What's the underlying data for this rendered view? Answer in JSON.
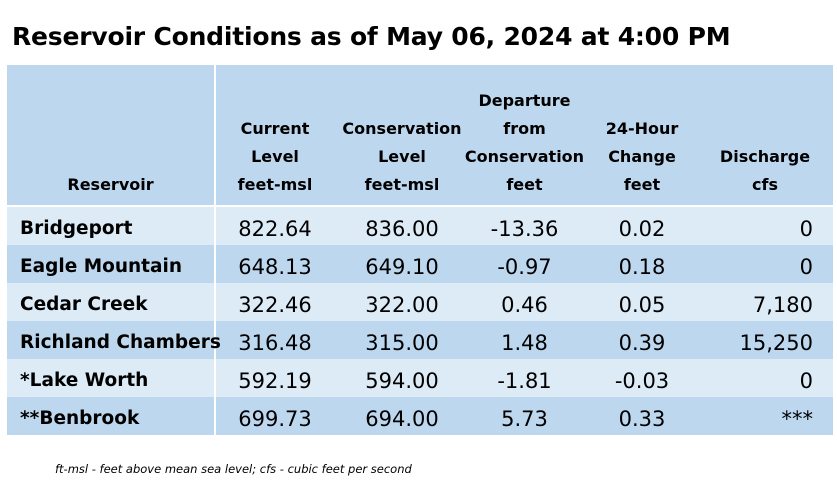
{
  "title": "Reservoir Conditions as of May 06, 2024 at 4:00 PM",
  "headers": {
    "reservoir": [
      "Reservoir"
    ],
    "current": [
      "Current",
      "Level",
      "feet-msl"
    ],
    "conservation": [
      "Conservation",
      "Level",
      "feet-msl"
    ],
    "departure": [
      "Departure",
      "from",
      "Conservation",
      "feet"
    ],
    "change": [
      "24-Hour",
      "Change",
      "feet"
    ],
    "discharge": [
      "Discharge",
      "cfs"
    ]
  },
  "rows": [
    {
      "name": "Bridgeport",
      "current": "822.64",
      "conservation": "836.00",
      "departure": "-13.36",
      "change": "0.02",
      "discharge": "0"
    },
    {
      "name": "Eagle Mountain",
      "current": "648.13",
      "conservation": "649.10",
      "departure": "-0.97",
      "change": "0.18",
      "discharge": "0"
    },
    {
      "name": "Cedar Creek",
      "current": "322.46",
      "conservation": "322.00",
      "departure": "0.46",
      "change": "0.05",
      "discharge": "7,180"
    },
    {
      "name": "Richland Chambers",
      "current": "316.48",
      "conservation": "315.00",
      "departure": "1.48",
      "change": "0.39",
      "discharge": "15,250"
    },
    {
      "name": "*Lake Worth",
      "current": "592.19",
      "conservation": "594.00",
      "departure": "-1.81",
      "change": "-0.03",
      "discharge": "0"
    },
    {
      "name": "**Benbrook",
      "current": "699.73",
      "conservation": "694.00",
      "departure": "5.73",
      "change": "0.33",
      "discharge": "***"
    }
  ],
  "footnote": "ft-msl - feet above mean sea level; cfs - cubic feet per second",
  "colors": {
    "header_bg": "#bdd7ee",
    "row_light": "#ddebf7",
    "row_dark": "#bdd7ee"
  }
}
